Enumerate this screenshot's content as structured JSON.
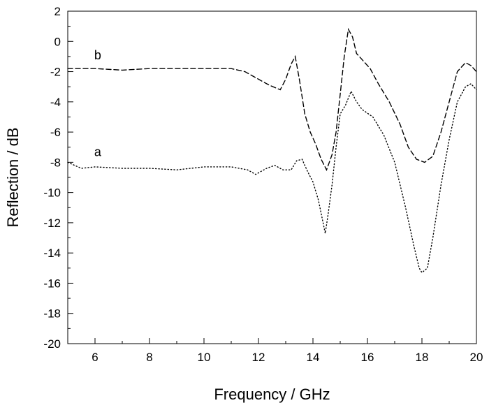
{
  "chart_data": {
    "type": "line",
    "xlabel": "Frequency / GHz",
    "ylabel": "Reflection / dB",
    "xlim": [
      5,
      20
    ],
    "ylim": [
      -20,
      2
    ],
    "x_ticks": [
      6,
      8,
      10,
      12,
      14,
      16,
      18,
      20
    ],
    "y_ticks": [
      2,
      0,
      -2,
      -4,
      -6,
      -8,
      -10,
      -12,
      -14,
      -16,
      -18,
      -20
    ],
    "grid": false,
    "series": [
      {
        "name": "a",
        "style": "dotted",
        "label_at": [
          6.1,
          -7.6
        ],
        "x": [
          5.0,
          5.5,
          6.0,
          7.0,
          8.0,
          9.0,
          10.0,
          11.0,
          11.6,
          11.9,
          12.1,
          12.3,
          12.6,
          12.9,
          13.2,
          13.4,
          13.6,
          13.8,
          14.0,
          14.2,
          14.35,
          14.45,
          14.55,
          14.7,
          14.85,
          15.0,
          15.2,
          15.4,
          15.6,
          15.8,
          16.2,
          16.6,
          17.0,
          17.4,
          17.7,
          17.9,
          18.0,
          18.2,
          18.4,
          18.7,
          19.0,
          19.3,
          19.6,
          19.8,
          20.0
        ],
        "y": [
          -8.0,
          -8.4,
          -8.3,
          -8.4,
          -8.4,
          -8.5,
          -8.3,
          -8.3,
          -8.5,
          -8.8,
          -8.6,
          -8.4,
          -8.2,
          -8.5,
          -8.5,
          -7.9,
          -7.8,
          -8.6,
          -9.3,
          -10.5,
          -11.8,
          -12.7,
          -11.5,
          -9.5,
          -7.0,
          -4.8,
          -4.2,
          -3.3,
          -4.0,
          -4.5,
          -5.0,
          -6.2,
          -8.0,
          -11.0,
          -13.5,
          -15.0,
          -15.3,
          -15.0,
          -13.0,
          -9.5,
          -6.5,
          -4.0,
          -3.0,
          -2.8,
          -3.2
        ]
      },
      {
        "name": "b",
        "style": "dashed",
        "label_at": [
          6.1,
          -1.2
        ],
        "x": [
          5.0,
          6.0,
          7.0,
          8.0,
          9.0,
          10.0,
          11.0,
          11.5,
          12.0,
          12.4,
          12.8,
          13.0,
          13.2,
          13.35,
          13.5,
          13.7,
          13.9,
          14.1,
          14.3,
          14.5,
          14.7,
          14.85,
          15.0,
          15.15,
          15.3,
          15.45,
          15.6,
          15.8,
          16.1,
          16.4,
          16.8,
          17.2,
          17.5,
          17.8,
          18.1,
          18.4,
          18.7,
          19.0,
          19.3,
          19.6,
          19.8,
          20.0
        ],
        "y": [
          -1.8,
          -1.8,
          -1.9,
          -1.8,
          -1.8,
          -1.8,
          -1.8,
          -2.0,
          -2.5,
          -2.9,
          -3.2,
          -2.5,
          -1.5,
          -1.0,
          -2.5,
          -4.8,
          -6.0,
          -6.8,
          -7.8,
          -8.5,
          -7.5,
          -6.0,
          -3.5,
          -1.0,
          0.8,
          0.3,
          -0.8,
          -1.2,
          -1.8,
          -2.8,
          -4.0,
          -5.5,
          -7.0,
          -7.8,
          -8.0,
          -7.6,
          -6.0,
          -4.0,
          -2.0,
          -1.4,
          -1.6,
          -2.0
        ]
      }
    ]
  }
}
